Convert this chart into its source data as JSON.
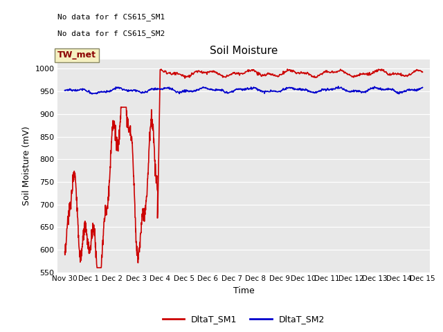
{
  "title": "Soil Moisture",
  "xlabel": "Time",
  "ylabel": "Soil Moisture (mV)",
  "ylim": [
    550,
    1020
  ],
  "yticks": [
    550,
    600,
    650,
    700,
    750,
    800,
    850,
    900,
    950,
    1000
  ],
  "bg_color": "#e8e8e8",
  "fig_color": "#ffffff",
  "no_data_text1": "No data for f CS615_SM1",
  "no_data_text2": "No data for f CS615_SM2",
  "tw_met_label": "TW_met",
  "line1_color": "#cc0000",
  "line2_color": "#0000cc",
  "legend1": "DltaT_SM1",
  "legend2": "DltaT_SM2",
  "xtick_labels": [
    "Nov 30",
    "Dec 1",
    "Dec 2",
    "Dec 3",
    "Dec 4",
    "Dec 5",
    "Dec 6",
    "Dec 7",
    "Dec 8",
    "Dec 9",
    "Dec 10",
    "Dec 11",
    "Dec 12",
    "Dec 13",
    "Dec 14",
    "Dec 15"
  ],
  "xtick_positions": [
    0,
    1,
    2,
    3,
    4,
    5,
    6,
    7,
    8,
    9,
    10,
    11,
    12,
    13,
    14,
    15
  ]
}
